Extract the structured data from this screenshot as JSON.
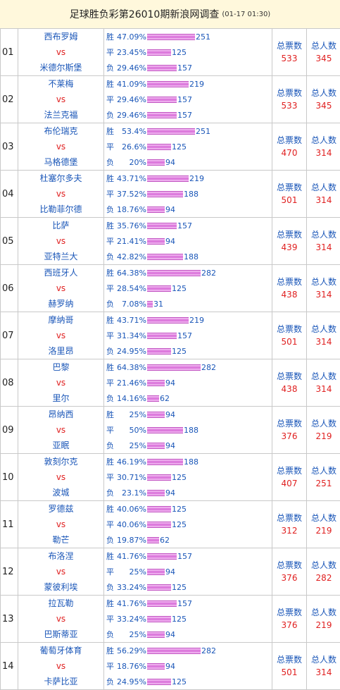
{
  "header": {
    "title": "足球胜负彩第26010期新浪网调查",
    "time": "(01-17 01:30)"
  },
  "labels": {
    "win": "胜",
    "draw": "平",
    "lose": "负",
    "vs": "vs",
    "total_votes": "总票数",
    "total_people": "总人数"
  },
  "matches": [
    {
      "no": "01",
      "home": "西布罗姆",
      "away": "米德尔斯堡",
      "win_pct": "47.09%",
      "win_cnt": "251",
      "draw_pct": "23.45%",
      "draw_cnt": "125",
      "lose_pct": "29.46%",
      "lose_cnt": "157",
      "votes": "533",
      "people": "345"
    },
    {
      "no": "02",
      "home": "不莱梅",
      "away": "法兰克福",
      "win_pct": "41.09%",
      "win_cnt": "219",
      "draw_pct": "29.46%",
      "draw_cnt": "157",
      "lose_pct": "29.46%",
      "lose_cnt": "157",
      "votes": "533",
      "people": "345"
    },
    {
      "no": "03",
      "home": "布伦瑞克",
      "away": "马格德堡",
      "win_pct": "53.4%",
      "win_cnt": "251",
      "draw_pct": "26.6%",
      "draw_cnt": "125",
      "lose_pct": "20%",
      "lose_cnt": "94",
      "votes": "470",
      "people": "314"
    },
    {
      "no": "04",
      "home": "杜塞尔多夫",
      "away": "比勒菲尔德",
      "win_pct": "43.71%",
      "win_cnt": "219",
      "draw_pct": "37.52%",
      "draw_cnt": "188",
      "lose_pct": "18.76%",
      "lose_cnt": "94",
      "votes": "501",
      "people": "314"
    },
    {
      "no": "05",
      "home": "比萨",
      "away": "亚特兰大",
      "win_pct": "35.76%",
      "win_cnt": "157",
      "draw_pct": "21.41%",
      "draw_cnt": "94",
      "lose_pct": "42.82%",
      "lose_cnt": "188",
      "votes": "439",
      "people": "314"
    },
    {
      "no": "06",
      "home": "西班牙人",
      "away": "赫罗纳",
      "win_pct": "64.38%",
      "win_cnt": "282",
      "draw_pct": "28.54%",
      "draw_cnt": "125",
      "lose_pct": "7.08%",
      "lose_cnt": "31",
      "votes": "438",
      "people": "314"
    },
    {
      "no": "07",
      "home": "摩纳哥",
      "away": "洛里昂",
      "win_pct": "43.71%",
      "win_cnt": "219",
      "draw_pct": "31.34%",
      "draw_cnt": "157",
      "lose_pct": "24.95%",
      "lose_cnt": "125",
      "votes": "501",
      "people": "314"
    },
    {
      "no": "08",
      "home": "巴黎",
      "away": "里尔",
      "win_pct": "64.38%",
      "win_cnt": "282",
      "draw_pct": "21.46%",
      "draw_cnt": "94",
      "lose_pct": "14.16%",
      "lose_cnt": "62",
      "votes": "438",
      "people": "314"
    },
    {
      "no": "09",
      "home": "昂纳西",
      "away": "亚眠",
      "win_pct": "25%",
      "win_cnt": "94",
      "draw_pct": "50%",
      "draw_cnt": "188",
      "lose_pct": "25%",
      "lose_cnt": "94",
      "votes": "376",
      "people": "219"
    },
    {
      "no": "10",
      "home": "敦刻尔克",
      "away": "波城",
      "win_pct": "46.19%",
      "win_cnt": "188",
      "draw_pct": "30.71%",
      "draw_cnt": "125",
      "lose_pct": "23.1%",
      "lose_cnt": "94",
      "votes": "407",
      "people": "251"
    },
    {
      "no": "11",
      "home": "罗德兹",
      "away": "勒芒",
      "win_pct": "40.06%",
      "win_cnt": "125",
      "draw_pct": "40.06%",
      "draw_cnt": "125",
      "lose_pct": "19.87%",
      "lose_cnt": "62",
      "votes": "312",
      "people": "219"
    },
    {
      "no": "12",
      "home": "布洛涅",
      "away": "蒙彼利埃",
      "win_pct": "41.76%",
      "win_cnt": "157",
      "draw_pct": "25%",
      "draw_cnt": "94",
      "lose_pct": "33.24%",
      "lose_cnt": "125",
      "votes": "376",
      "people": "282"
    },
    {
      "no": "13",
      "home": "拉瓦勒",
      "away": "巴斯蒂亚",
      "win_pct": "41.76%",
      "win_cnt": "157",
      "draw_pct": "33.24%",
      "draw_cnt": "125",
      "lose_pct": "25%",
      "lose_cnt": "94",
      "votes": "376",
      "people": "219"
    },
    {
      "no": "14",
      "home": "葡萄牙体育",
      "away": "卡萨比亚",
      "win_pct": "56.29%",
      "win_cnt": "282",
      "draw_pct": "18.76%",
      "draw_cnt": "94",
      "lose_pct": "24.95%",
      "lose_cnt": "125",
      "votes": "501",
      "people": "314"
    }
  ]
}
